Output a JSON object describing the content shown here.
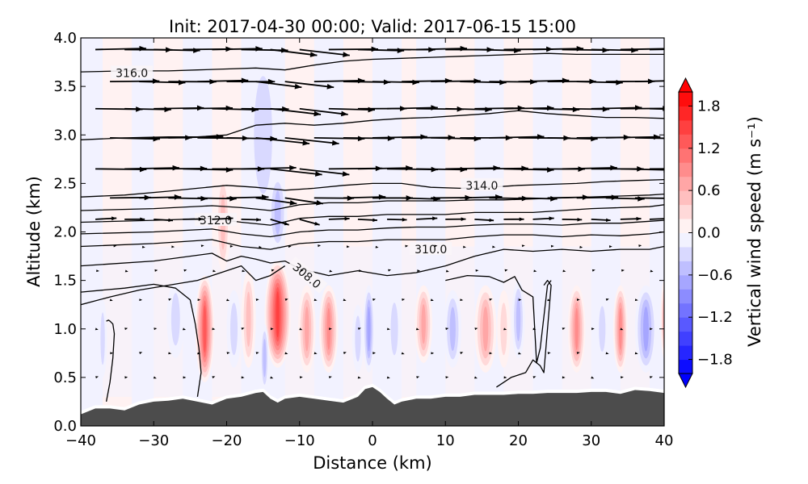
{
  "chart_data": {
    "type": "heatmap",
    "title": "Init: 2017-04-30 00:00; Valid: 2017-06-15 15:00",
    "xlabel": "Distance (km)",
    "ylabel": "Altitude (km)",
    "xlim": [
      -40,
      40
    ],
    "ylim": [
      0.0,
      4.0
    ],
    "xticks": [
      -40,
      -30,
      -20,
      -10,
      0,
      10,
      20,
      30,
      40
    ],
    "xtick_labels": [
      "−40",
      "−30",
      "−20",
      "−10",
      "0",
      "10",
      "20",
      "30",
      "40"
    ],
    "yticks": [
      0.0,
      0.5,
      1.0,
      1.5,
      2.0,
      2.5,
      3.0,
      3.5,
      4.0
    ],
    "ytick_labels": [
      "0.0",
      "0.5",
      "1.0",
      "1.5",
      "2.0",
      "2.5",
      "3.0",
      "3.5",
      "4.0"
    ],
    "grid": false,
    "colorbar": {
      "label": "Vertical wind speed (m s⁻¹)",
      "range": [
        -2.0,
        2.0
      ],
      "levels": [
        -2.0,
        -1.8,
        -1.6,
        -1.4,
        -1.2,
        -1.0,
        -0.8,
        -0.6,
        -0.4,
        -0.2,
        0.0,
        0.2,
        0.4,
        0.6,
        0.8,
        1.0,
        1.2,
        1.4,
        1.6,
        1.8,
        2.0
      ],
      "ticks": [
        -1.8,
        -1.2,
        -0.6,
        0.0,
        0.6,
        1.2,
        1.8
      ],
      "tick_labels": [
        "−1.8",
        "−1.2",
        "−0.6",
        "0.0",
        "0.6",
        "1.2",
        "1.8"
      ],
      "extend": "both",
      "colormap": "bwr",
      "low_color": "#0000ff",
      "mid_color": "#ffffff",
      "high_color": "#ff0000"
    },
    "vertical_velocity_cells": [
      {
        "x": -23,
        "z_center": 1.0,
        "z_half": 0.55,
        "x_half": 1.3,
        "w": 1.4
      },
      {
        "x": -20.5,
        "z_center": 2.1,
        "z_half": 0.5,
        "x_half": 1.0,
        "w": 0.5
      },
      {
        "x": -13,
        "z_center": 1.15,
        "z_half": 0.55,
        "x_half": 1.8,
        "w": 1.6
      },
      {
        "x": -15,
        "z_center": 3.0,
        "z_half": 0.9,
        "x_half": 2.5,
        "w": -0.35
      },
      {
        "x": -13,
        "z_center": 2.2,
        "z_half": 0.4,
        "x_half": 1.3,
        "w": -0.5
      },
      {
        "x": -14.8,
        "z_center": 0.7,
        "z_half": 0.35,
        "x_half": 0.6,
        "w": -0.6
      },
      {
        "x": -19,
        "z_center": 1.0,
        "z_half": 0.4,
        "x_half": 1.0,
        "w": -0.35
      },
      {
        "x": -17,
        "z_center": 1.1,
        "z_half": 0.5,
        "x_half": 1.0,
        "w": 0.5
      },
      {
        "x": -9,
        "z_center": 1.0,
        "z_half": 0.45,
        "x_half": 1.2,
        "w": 0.7
      },
      {
        "x": -6,
        "z_center": 1.0,
        "z_half": 0.45,
        "x_half": 1.3,
        "w": 0.9
      },
      {
        "x": -27,
        "z_center": 1.1,
        "z_half": 0.4,
        "x_half": 1.2,
        "w": -0.25
      },
      {
        "x": -37,
        "z_center": 0.9,
        "z_half": 0.4,
        "x_half": 0.6,
        "w": -0.3
      },
      {
        "x": -2,
        "z_center": 0.9,
        "z_half": 0.35,
        "x_half": 0.8,
        "w": -0.4
      },
      {
        "x": -0.5,
        "z_center": 1.0,
        "z_half": 0.45,
        "x_half": 0.8,
        "w": -0.7
      },
      {
        "x": 3,
        "z_center": 1.0,
        "z_half": 0.4,
        "x_half": 1.0,
        "w": -0.3
      },
      {
        "x": 7,
        "z_center": 1.05,
        "z_half": 0.4,
        "x_half": 1.2,
        "w": 0.8
      },
      {
        "x": 11,
        "z_center": 1.0,
        "z_half": 0.4,
        "x_half": 1.2,
        "w": -0.5
      },
      {
        "x": 15.5,
        "z_center": 1.0,
        "z_half": 0.45,
        "x_half": 1.5,
        "w": 0.8
      },
      {
        "x": 18,
        "z_center": 1.0,
        "z_half": 0.4,
        "x_half": 0.9,
        "w": 0.4
      },
      {
        "x": 20,
        "z_center": 1.1,
        "z_half": 0.4,
        "x_half": 0.9,
        "w": -0.6
      },
      {
        "x": 28,
        "z_center": 1.0,
        "z_half": 0.45,
        "x_half": 1.2,
        "w": 1.0
      },
      {
        "x": 31.5,
        "z_center": 1.0,
        "z_half": 0.35,
        "x_half": 0.9,
        "w": -0.3
      },
      {
        "x": 34,
        "z_center": 1.0,
        "z_half": 0.45,
        "x_half": 1.0,
        "w": 0.9
      },
      {
        "x": 37.5,
        "z_center": 1.0,
        "z_half": 0.45,
        "x_half": 1.5,
        "w": -0.8
      },
      {
        "x": 40,
        "z_center": 1.1,
        "z_half": 0.4,
        "x_half": 0.5,
        "w": 0.6
      }
    ],
    "terrain_height_km": {
      "x": [
        -40,
        -38,
        -36,
        -34,
        -32,
        -30,
        -28,
        -26,
        -24,
        -22,
        -20,
        -18,
        -16,
        -15,
        -14,
        -13,
        -12,
        -10,
        -8,
        -6,
        -4,
        -2,
        -1,
        0,
        1,
        2,
        3,
        4,
        6,
        8,
        10,
        12,
        14,
        16,
        18,
        20,
        22,
        24,
        26,
        28,
        30,
        32,
        34,
        36,
        38,
        40
      ],
      "z": [
        0.12,
        0.18,
        0.18,
        0.16,
        0.22,
        0.25,
        0.26,
        0.28,
        0.25,
        0.22,
        0.28,
        0.3,
        0.34,
        0.35,
        0.28,
        0.24,
        0.28,
        0.3,
        0.28,
        0.26,
        0.24,
        0.3,
        0.38,
        0.4,
        0.35,
        0.28,
        0.22,
        0.25,
        0.28,
        0.28,
        0.3,
        0.3,
        0.32,
        0.32,
        0.32,
        0.33,
        0.33,
        0.34,
        0.34,
        0.34,
        0.35,
        0.35,
        0.33,
        0.37,
        0.36,
        0.34
      ]
    },
    "theta_contours": [
      {
        "level": 308.0,
        "label": "308.0",
        "x": [
          -40,
          -36,
          -32,
          -28,
          -24,
          -22,
          -20,
          -18,
          -16,
          -14,
          -12
        ],
        "z": [
          1.25,
          1.33,
          1.4,
          1.45,
          1.5,
          1.55,
          1.6,
          1.65,
          1.5,
          1.55,
          1.65
        ]
      },
      {
        "level": 310.0,
        "label": "310.0",
        "x": [
          -40,
          -30,
          -22,
          -20,
          -18,
          -16,
          -14,
          -12,
          -10,
          -6,
          -2,
          2,
          6,
          10,
          14,
          18,
          22,
          26,
          30,
          34,
          38,
          40
        ],
        "z": [
          1.65,
          1.7,
          1.78,
          1.7,
          1.75,
          1.72,
          1.68,
          1.7,
          1.62,
          1.55,
          1.6,
          1.55,
          1.58,
          1.65,
          1.75,
          1.82,
          1.8,
          1.82,
          1.8,
          1.82,
          1.82,
          1.85
        ]
      },
      {
        "level": 310.5,
        "label": "",
        "x": [
          -40,
          -30,
          -22,
          -18,
          -14,
          -10,
          -6,
          -2,
          2,
          6,
          10,
          14,
          18,
          22,
          26,
          30,
          34,
          38,
          40
        ],
        "z": [
          1.85,
          1.88,
          1.92,
          1.85,
          1.82,
          1.88,
          1.9,
          1.9,
          1.92,
          1.92,
          1.92,
          1.95,
          1.97,
          1.97,
          1.95,
          1.97,
          1.96,
          1.98,
          2.0
        ]
      },
      {
        "level": 311.0,
        "label": "",
        "x": [
          -40,
          -30,
          -22,
          -18,
          -14,
          -10,
          -6,
          -2,
          2,
          6,
          10,
          14,
          18,
          22,
          26,
          30,
          34,
          38,
          40
        ],
        "z": [
          1.98,
          2.0,
          2.03,
          1.98,
          1.95,
          2.0,
          2.02,
          2.02,
          2.04,
          2.05,
          2.05,
          2.07,
          2.08,
          2.08,
          2.07,
          2.09,
          2.09,
          2.11,
          2.12
        ]
      },
      {
        "level": 312.0,
        "label": "312.0",
        "x": [
          -40,
          -30,
          -22,
          -18,
          -14,
          -10,
          -6,
          -2,
          2,
          6,
          10,
          14,
          18,
          22,
          26,
          30,
          34,
          38,
          40
        ],
        "z": [
          2.1,
          2.12,
          2.14,
          2.1,
          2.07,
          2.14,
          2.16,
          2.16,
          2.18,
          2.18,
          2.18,
          2.2,
          2.2,
          2.2,
          2.22,
          2.24,
          2.25,
          2.26,
          2.28
        ]
      },
      {
        "level": 313.0,
        "label": "",
        "x": [
          -40,
          -30,
          -22,
          -18,
          -14,
          -10,
          -6,
          -2,
          2,
          6,
          10,
          14,
          18,
          22,
          26,
          30,
          34,
          38,
          40
        ],
        "z": [
          2.22,
          2.24,
          2.27,
          2.25,
          2.22,
          2.28,
          2.3,
          2.3,
          2.32,
          2.32,
          2.32,
          2.33,
          2.33,
          2.34,
          2.35,
          2.36,
          2.37,
          2.38,
          2.39
        ]
      },
      {
        "level": 314.0,
        "label": "314.0",
        "x": [
          -40,
          -34,
          -28,
          -24,
          -20,
          -16,
          -12,
          -8,
          -4,
          0,
          4,
          8,
          12,
          16,
          20,
          24,
          28,
          32,
          36,
          40
        ],
        "z": [
          2.36,
          2.38,
          2.42,
          2.45,
          2.48,
          2.46,
          2.43,
          2.45,
          2.48,
          2.5,
          2.5,
          2.46,
          2.45,
          2.46,
          2.48,
          2.49,
          2.5,
          2.52,
          2.53,
          2.54
        ]
      },
      {
        "level": 315.0,
        "label": "",
        "x": [
          -40,
          -34,
          -28,
          -24,
          -20,
          -16,
          -12,
          -8,
          -4,
          0,
          4,
          8,
          12,
          16,
          20,
          24,
          28,
          32,
          36,
          40
        ],
        "z": [
          2.95,
          2.97,
          2.98,
          2.98,
          3.0,
          3.1,
          3.12,
          3.1,
          3.12,
          3.15,
          3.17,
          3.18,
          3.2,
          3.22,
          3.25,
          3.22,
          3.2,
          3.18,
          3.18,
          3.17
        ]
      },
      {
        "level": 316.0,
        "label": "316.0",
        "x": [
          -40,
          -34,
          -28,
          -24,
          -20,
          -16,
          -12,
          -8,
          -4,
          0,
          4,
          8,
          12,
          16,
          20,
          24,
          28,
          32,
          36,
          40
        ],
        "z": [
          3.65,
          3.66,
          3.66,
          3.67,
          3.68,
          3.69,
          3.67,
          3.72,
          3.76,
          3.78,
          3.79,
          3.8,
          3.81,
          3.82,
          3.83,
          3.84,
          3.83,
          3.83,
          3.83,
          3.83
        ]
      },
      {
        "level": 309.0,
        "label": "",
        "x": [
          -36.5,
          -36.0,
          -35.6,
          -35.4,
          -35.6,
          -36.0,
          -36.2,
          -36.5
        ],
        "z": [
          0.25,
          0.45,
          0.7,
          0.95,
          1.05,
          1.08,
          1.09,
          1.08
        ],
        "open": true
      },
      {
        "level": 309.0,
        "label": "",
        "x": [
          -24,
          -23.5,
          -23.8,
          -24.3,
          -25,
          -27,
          -30,
          -34,
          -40
        ],
        "z": [
          0.3,
          0.55,
          0.8,
          1.05,
          1.3,
          1.42,
          1.46,
          1.42,
          1.38
        ],
        "open": true
      },
      {
        "level": 309.0,
        "label": "",
        "x": [
          10,
          13,
          16,
          18,
          19.5,
          20.5,
          22,
          22.5,
          23,
          24,
          24.5
        ],
        "z": [
          1.5,
          1.55,
          1.54,
          1.48,
          1.54,
          1.4,
          1.33,
          0.65,
          0.8,
          1.45,
          1.5
        ],
        "open": true
      },
      {
        "level": 308.5,
        "label": "",
        "x": [
          17,
          19,
          21,
          22,
          23,
          23.5,
          24.5,
          24,
          23.5
        ],
        "z": [
          0.4,
          0.5,
          0.55,
          0.68,
          0.62,
          0.55,
          1.45,
          1.5,
          1.45
        ],
        "open": true
      }
    ],
    "wind_vectors": {
      "description": "Quiver arrows showing along-section wind (u) and vertical wind (w); strong eastward flow aloft (~2-4 km), weak flow below ~1.8 km.",
      "rows": [
        {
          "z": 3.88,
          "u": 6.0,
          "w": 0.0
        },
        {
          "z": 3.55,
          "u": 6.0,
          "w": 0.0
        },
        {
          "z": 3.27,
          "u": 6.0,
          "w": 0.0
        },
        {
          "z": 2.97,
          "u": 6.5,
          "w": 0.0
        },
        {
          "z": 2.65,
          "u": 6.5,
          "w": 0.0
        },
        {
          "z": 2.35,
          "u": 5.0,
          "w": 0.0
        },
        {
          "z": 2.13,
          "u": 2.5,
          "w": 0.0
        },
        {
          "z": 1.85,
          "u": 0.8,
          "w": 0.0
        },
        {
          "z": 1.6,
          "u": 0.5,
          "w": 0.0
        },
        {
          "z": 1.3,
          "u": 0.4,
          "w": 0.0
        },
        {
          "z": 1.0,
          "u": 0.4,
          "w": 0.0
        },
        {
          "z": 0.75,
          "u": 0.4,
          "w": 0.0
        },
        {
          "z": 0.5,
          "u": 0.4,
          "w": 0.0
        }
      ],
      "x_positions": [
        -40,
        -36,
        -32,
        -28,
        -24,
        -20,
        -16,
        -12,
        -8,
        -4,
        0,
        4,
        8,
        12,
        16,
        20,
        24,
        28,
        32,
        36,
        40
      ]
    }
  }
}
